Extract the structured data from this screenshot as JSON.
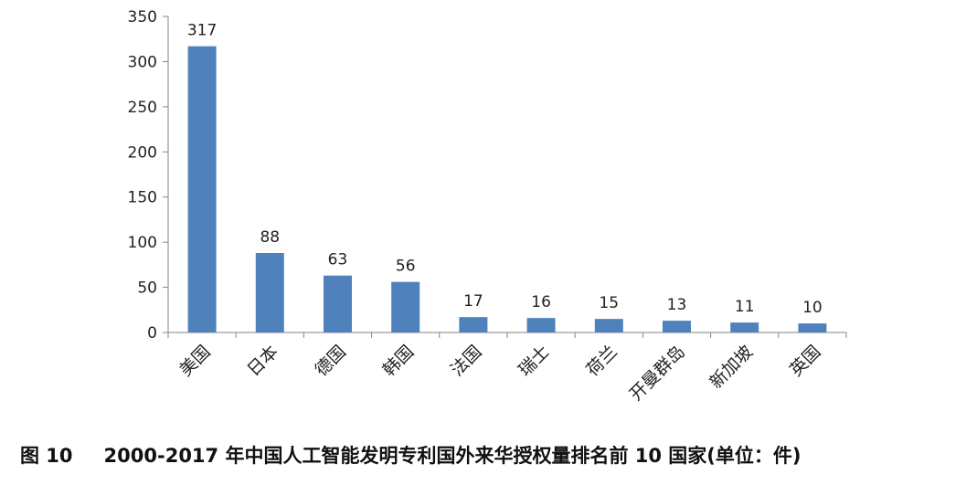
{
  "chart_data": {
    "type": "bar",
    "categories": [
      "美国",
      "日本",
      "德国",
      "韩国",
      "法国",
      "瑞士",
      "荷兰",
      "开曼群岛",
      "新加坡",
      "英国"
    ],
    "series": [
      {
        "values": [
          317,
          88,
          63,
          56,
          17,
          16,
          15,
          13,
          11,
          10
        ]
      }
    ],
    "yticks": [
      "0",
      "50",
      "100",
      "150",
      "200",
      "250",
      "300",
      "350"
    ],
    "ylim": [
      0,
      350
    ],
    "data_labels": true,
    "grid": false,
    "legend": "none",
    "bar_color": "#4f81bd"
  },
  "caption": {
    "figure_number": "图 10",
    "text": "2000-2017 年中国人工智能发明专利国外来华授权量排名前 10 国家(单位：件)"
  }
}
